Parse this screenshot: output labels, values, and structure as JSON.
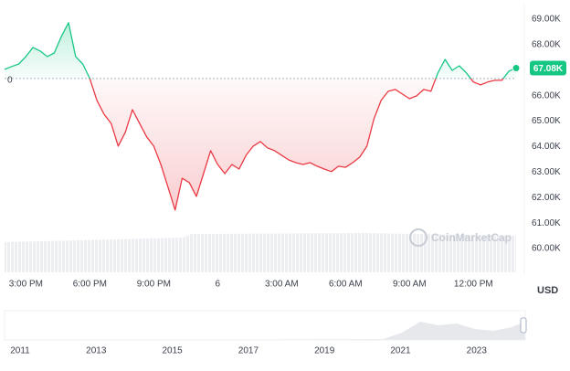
{
  "chart_data": {
    "type": "line",
    "series": [
      {
        "name": null,
        "color": "#16c784",
        "color_below": "#ea3943",
        "values": [
          67030,
          67140,
          67240,
          67530,
          67890,
          67750,
          67530,
          67670,
          68320,
          68860,
          67530,
          67240,
          66670,
          65810,
          65270,
          64910,
          64020,
          64560,
          65450,
          64910,
          64380,
          64020,
          63300,
          62410,
          61510,
          62760,
          62590,
          62050,
          62940,
          63840,
          63300,
          62940,
          63300,
          63120,
          63660,
          64020,
          64200,
          63950,
          63840,
          63660,
          63480,
          63370,
          63300,
          63370,
          63230,
          63120,
          63020,
          63230,
          63190,
          63370,
          63590,
          64020,
          65090,
          65810,
          66170,
          66240,
          66060,
          65880,
          65990,
          66240,
          66170,
          66890,
          67420,
          66990,
          67170,
          66890,
          66530,
          66420,
          66530,
          66600,
          66600,
          66960,
          67080
        ]
      }
    ],
    "baseline": 66670,
    "baseline_label": "0",
    "current_label": "67.08K",
    "xlim": [
      0,
      72
    ],
    "xticks": [
      {
        "value": 3,
        "label": "3:00 PM"
      },
      {
        "value": 12,
        "label": "6:00 PM"
      },
      {
        "value": 21,
        "label": "9:00 PM"
      },
      {
        "value": 30,
        "label": "6"
      },
      {
        "value": 39,
        "label": "3:00 AM"
      },
      {
        "value": 48,
        "label": "6:00 AM"
      },
      {
        "value": 57,
        "label": "9:00 AM"
      },
      {
        "value": 66,
        "label": "12:00 PM"
      }
    ],
    "ylim": [
      59000,
      69570
    ],
    "yticks": [
      {
        "value": 60000,
        "label": "60.00K"
      },
      {
        "value": 61000,
        "label": "61.00K"
      },
      {
        "value": 62000,
        "label": "62.00K"
      },
      {
        "value": 63000,
        "label": "63.00K"
      },
      {
        "value": 64000,
        "label": "64.00K"
      },
      {
        "value": 65000,
        "label": "65.00K"
      },
      {
        "value": 66000,
        "label": "66.00K"
      },
      {
        "value": 68000,
        "label": "68.00K"
      },
      {
        "value": 69000,
        "label": "69.00K"
      }
    ],
    "grid": false,
    "currency": "USD",
    "watermark": "CoinMarketCap",
    "navigator_labels": [
      "2011",
      "2013",
      "2015",
      "2017",
      "2019",
      "2021",
      "2023"
    ]
  }
}
